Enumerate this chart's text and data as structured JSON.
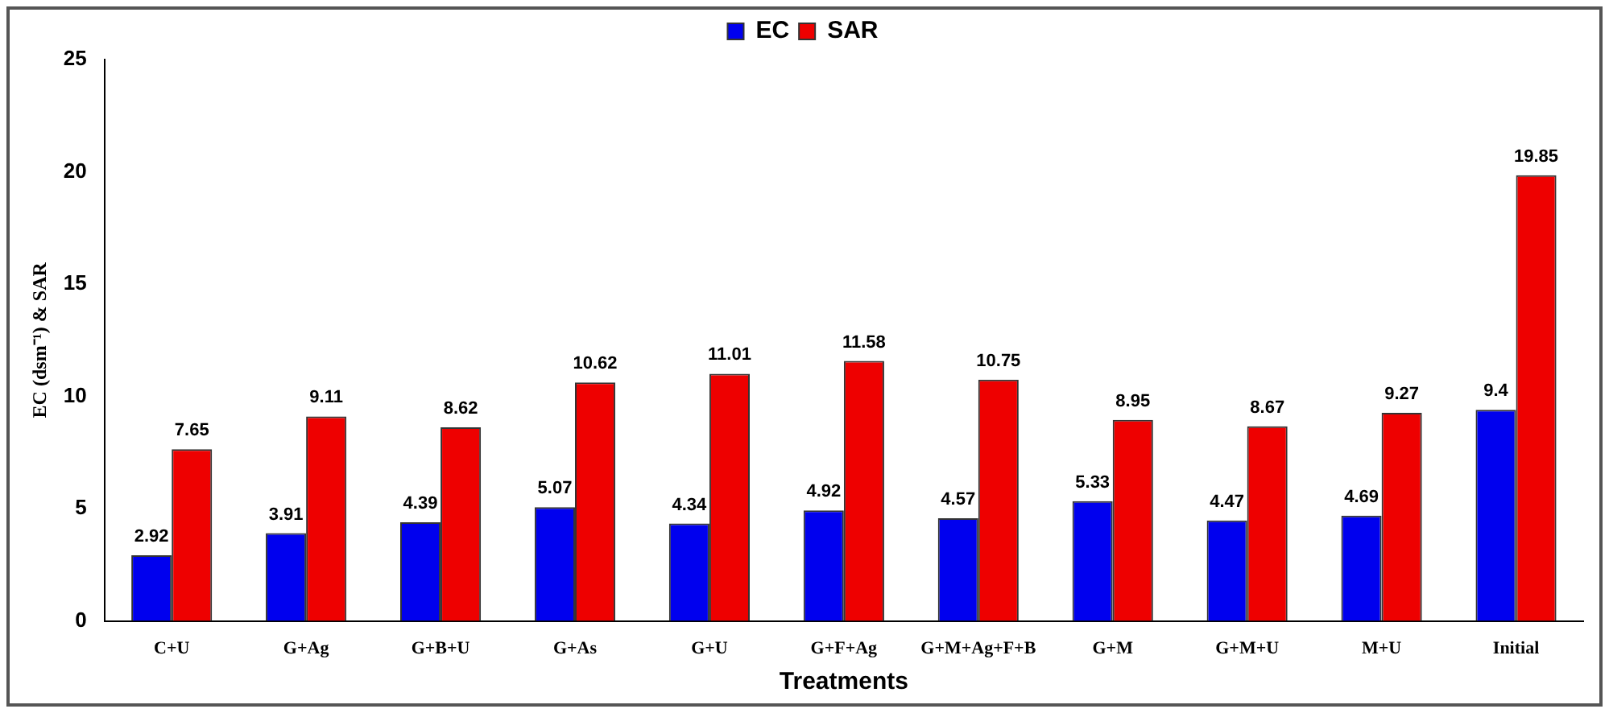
{
  "chart_data": {
    "type": "bar",
    "xlabel": "Treatments",
    "ylabel": "EC (dsm⁻¹) & SAR",
    "categories": [
      "C+U",
      "G+Ag",
      "G+B+U",
      "G+As",
      "G+U",
      "G+F+Ag",
      "G+M+Ag+F+B",
      "G+M",
      "G+M+U",
      "M+U",
      "Initial"
    ],
    "series": [
      {
        "name": "EC",
        "color": "#0000ee",
        "values": [
          2.92,
          3.91,
          4.39,
          5.07,
          4.34,
          4.92,
          4.57,
          5.33,
          4.47,
          4.69,
          9.4
        ]
      },
      {
        "name": "SAR",
        "color": "#ee0000",
        "values": [
          7.65,
          9.11,
          8.62,
          10.62,
          11.01,
          11.58,
          10.75,
          8.95,
          8.67,
          9.27,
          19.85
        ]
      }
    ],
    "ylim": [
      0,
      25
    ],
    "yticks": [
      0,
      5,
      10,
      15,
      20,
      25
    ],
    "grid": false,
    "legend": "top",
    "data_labels": true
  }
}
